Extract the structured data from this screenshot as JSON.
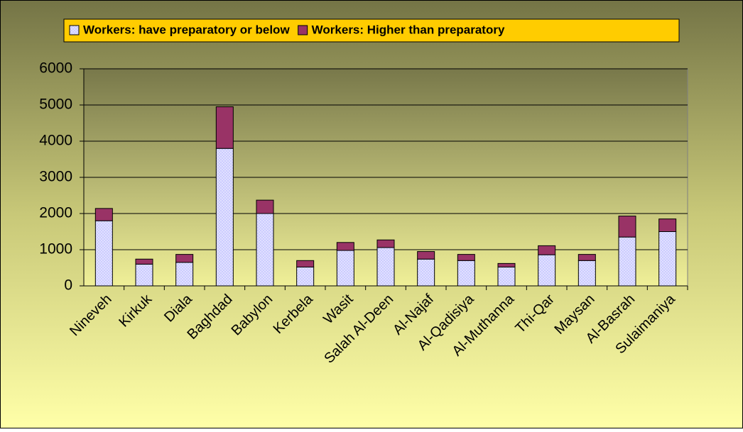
{
  "chart_data": {
    "type": "stacked_bar",
    "categories": [
      "Nineveh",
      "Kirkuk",
      "Diala",
      "Baghdad",
      "Babylon",
      "Kerbela",
      "Wasit",
      "Salah Al-Deen",
      "Al-Najaf",
      "Al-Qadisiya",
      "Al-Muthanna",
      "Thi-Qar",
      "Maysan",
      "Al-Basrah",
      "Sulaimaniya"
    ],
    "series": [
      {
        "name": "Workers: have preparatory or below",
        "color": "#ccccff",
        "values": [
          1800,
          600,
          650,
          3800,
          2000,
          520,
          980,
          1060,
          740,
          700,
          520,
          860,
          700,
          1350,
          1500
        ]
      },
      {
        "name": "Workers: Higher than preparatory",
        "color": "#993366",
        "values": [
          340,
          140,
          220,
          1150,
          370,
          180,
          220,
          210,
          210,
          170,
          100,
          250,
          170,
          580,
          350
        ]
      }
    ],
    "ylim": [
      0,
      6000
    ],
    "yticks": [
      0,
      1000,
      2000,
      3000,
      4000,
      5000,
      6000
    ],
    "grid": true,
    "legend": "top"
  }
}
